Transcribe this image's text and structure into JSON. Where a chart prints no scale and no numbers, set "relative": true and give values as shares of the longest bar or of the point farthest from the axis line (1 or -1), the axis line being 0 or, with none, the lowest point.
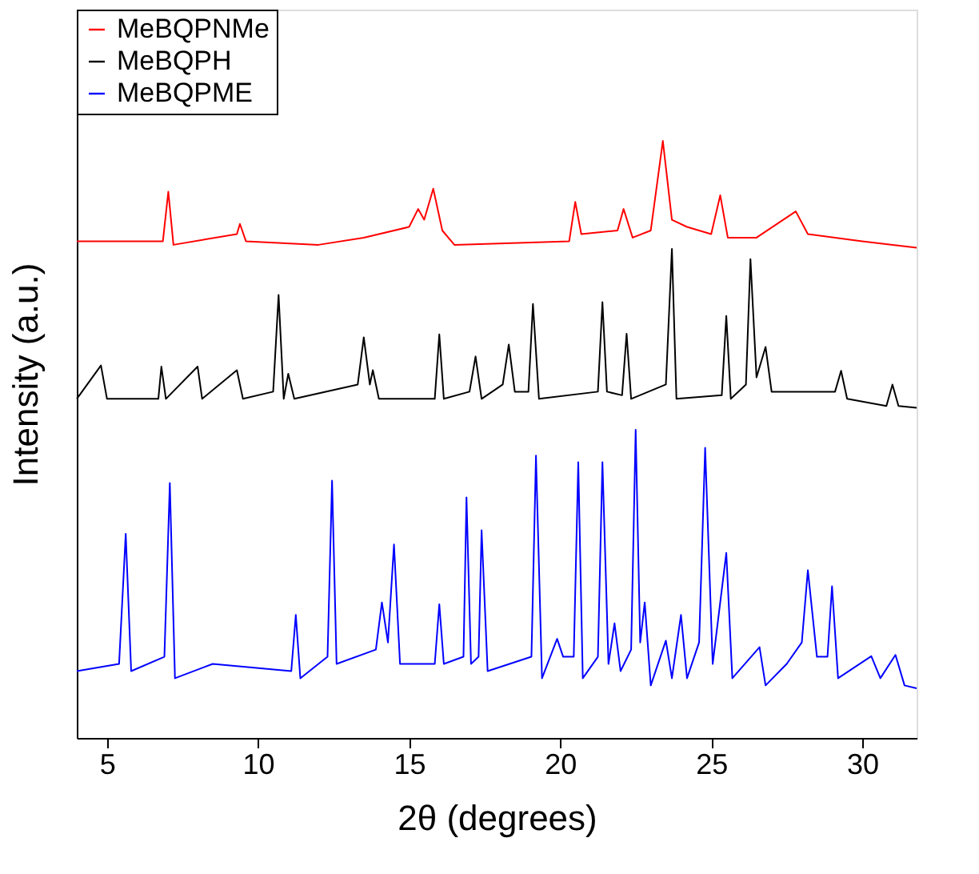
{
  "chart_data": {
    "type": "line",
    "relative": true,
    "xlabel": "2θ (degrees)",
    "ylabel": "Intensity (a.u.)",
    "xlim": [
      4,
      31.8
    ],
    "xticks": [
      5,
      10,
      15,
      20,
      25,
      30
    ],
    "legend": "top left",
    "grid": false,
    "marker": "none",
    "line_style": "solid",
    "series": [
      {
        "name": "MeBQPNMe",
        "color": "#ff0000",
        "x": [
          4.0,
          6.85,
          7.03,
          7.2,
          9.3,
          9.4,
          9.6,
          12.0,
          13.5,
          15.0,
          15.3,
          15.5,
          15.8,
          16.1,
          16.5,
          20.3,
          20.5,
          20.7,
          21.9,
          22.1,
          22.4,
          23.0,
          23.4,
          23.7,
          24.2,
          25.0,
          25.3,
          25.55,
          26.5,
          27.8,
          28.2,
          30.0,
          31.8
        ],
        "values": [
          0.832,
          0.832,
          0.915,
          0.826,
          0.844,
          0.861,
          0.832,
          0.826,
          0.838,
          0.856,
          0.886,
          0.868,
          0.92,
          0.85,
          0.826,
          0.832,
          0.898,
          0.844,
          0.85,
          0.886,
          0.838,
          0.85,
          1.0,
          0.868,
          0.856,
          0.844,
          0.909,
          0.838,
          0.838,
          0.882,
          0.844,
          0.832,
          0.821
        ]
      },
      {
        "name": "MeBQPH",
        "color": "#000000",
        "x": [
          4.0,
          4.8,
          5.0,
          6.7,
          6.8,
          6.95,
          8.0,
          8.15,
          9.3,
          9.5,
          10.5,
          10.68,
          10.85,
          11.0,
          11.2,
          13.3,
          13.5,
          13.7,
          13.8,
          14.0,
          15.85,
          16.0,
          16.15,
          17.0,
          17.2,
          17.4,
          18.1,
          18.3,
          18.5,
          18.95,
          19.1,
          19.3,
          21.25,
          21.4,
          21.55,
          22.05,
          22.2,
          22.35,
          23.5,
          23.7,
          23.85,
          25.35,
          25.5,
          25.65,
          26.15,
          26.3,
          26.5,
          26.8,
          27.0,
          29.1,
          29.3,
          29.5,
          30.8,
          31.0,
          31.2,
          31.8
        ],
        "values": [
          0.568,
          0.624,
          0.568,
          0.568,
          0.622,
          0.568,
          0.622,
          0.568,
          0.616,
          0.568,
          0.58,
          0.742,
          0.568,
          0.61,
          0.568,
          0.592,
          0.671,
          0.592,
          0.616,
          0.568,
          0.568,
          0.676,
          0.568,
          0.58,
          0.639,
          0.568,
          0.592,
          0.659,
          0.58,
          0.58,
          0.727,
          0.568,
          0.58,
          0.73,
          0.58,
          0.574,
          0.677,
          0.568,
          0.592,
          0.819,
          0.568,
          0.574,
          0.707,
          0.568,
          0.592,
          0.802,
          0.604,
          0.655,
          0.58,
          0.58,
          0.615,
          0.568,
          0.556,
          0.592,
          0.556,
          0.553
        ]
      },
      {
        "name": "MeBQPME",
        "color": "#0000ff",
        "x": [
          4.0,
          5.4,
          5.62,
          5.8,
          6.9,
          7.08,
          7.25,
          8.5,
          11.1,
          11.25,
          11.4,
          12.3,
          12.45,
          12.6,
          13.9,
          14.1,
          14.3,
          14.5,
          14.7,
          15.85,
          16.0,
          16.15,
          16.8,
          16.9,
          17.05,
          17.3,
          17.4,
          17.6,
          19.05,
          19.2,
          19.4,
          19.9,
          20.1,
          20.45,
          20.6,
          20.75,
          21.25,
          21.4,
          21.6,
          21.8,
          22.0,
          22.35,
          22.5,
          22.65,
          22.8,
          23.0,
          23.5,
          23.7,
          24.0,
          24.2,
          24.6,
          24.8,
          25.05,
          25.5,
          25.7,
          26.6,
          26.8,
          27.5,
          28.0,
          28.2,
          28.5,
          28.85,
          29.0,
          29.2,
          30.3,
          30.6,
          31.1,
          31.4,
          31.8
        ],
        "values": [
          0.112,
          0.124,
          0.342,
          0.112,
          0.136,
          0.427,
          0.1,
          0.124,
          0.112,
          0.206,
          0.1,
          0.136,
          0.431,
          0.124,
          0.148,
          0.227,
          0.16,
          0.324,
          0.124,
          0.124,
          0.224,
          0.124,
          0.136,
          0.403,
          0.124,
          0.136,
          0.348,
          0.112,
          0.136,
          0.473,
          0.1,
          0.166,
          0.136,
          0.136,
          0.462,
          0.1,
          0.136,
          0.462,
          0.124,
          0.192,
          0.112,
          0.148,
          0.516,
          0.16,
          0.227,
          0.088,
          0.163,
          0.1,
          0.206,
          0.1,
          0.16,
          0.486,
          0.124,
          0.31,
          0.1,
          0.152,
          0.088,
          0.124,
          0.16,
          0.281,
          0.136,
          0.136,
          0.254,
          0.1,
          0.137,
          0.1,
          0.139,
          0.088,
          0.083
        ]
      }
    ]
  }
}
